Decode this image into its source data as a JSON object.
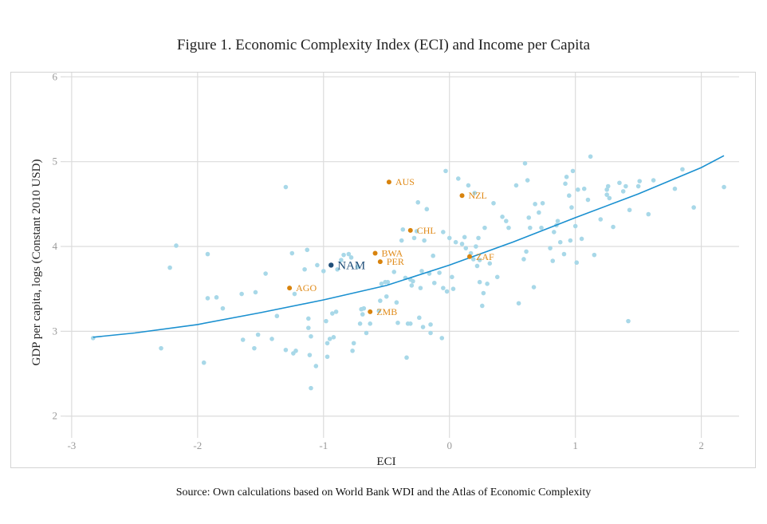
{
  "title": "Figure 1. Economic Complexity Index (ECI) and Income per Capita",
  "source": "Source: Own calculations based on World Bank WDI and the Atlas of Economic Complexity",
  "colors": {
    "background_points": "#a8d8e8",
    "highlight_points": "#d8830d",
    "focus_point": "#1f4e79",
    "trend_line": "#1a90d0",
    "grid": "#dcdcdc"
  },
  "chart_data": {
    "type": "scatter",
    "title": "Figure 1. Economic Complexity Index (ECI) and Income per Capita",
    "xlabel": "ECI",
    "ylabel": "GDP per capita, logs (Constant 2010 USD)",
    "xlim": [
      -3.05,
      2.3
    ],
    "ylim": [
      1.8,
      6.05
    ],
    "xticks": [
      -3,
      -2,
      -1,
      0,
      1,
      2
    ],
    "yticks": [
      2,
      3,
      4,
      5,
      6
    ],
    "grid": true,
    "points": [
      [
        -2.83,
        2.92
      ],
      [
        -2.29,
        2.8
      ],
      [
        -2.22,
        3.75
      ],
      [
        -2.17,
        4.01
      ],
      [
        -1.95,
        2.63
      ],
      [
        -1.92,
        3.91
      ],
      [
        -1.92,
        3.39
      ],
      [
        -1.85,
        3.4
      ],
      [
        -1.8,
        3.27
      ],
      [
        -1.65,
        3.44
      ],
      [
        -1.64,
        2.9
      ],
      [
        -1.55,
        2.8
      ],
      [
        -1.54,
        3.46
      ],
      [
        -1.52,
        2.96
      ],
      [
        -1.46,
        3.68
      ],
      [
        -1.41,
        2.91
      ],
      [
        -1.37,
        3.18
      ],
      [
        -1.3,
        4.7
      ],
      [
        -1.3,
        2.78
      ],
      [
        -1.25,
        3.92
      ],
      [
        -1.24,
        2.74
      ],
      [
        -1.23,
        3.44
      ],
      [
        -1.22,
        2.77
      ],
      [
        -1.15,
        3.73
      ],
      [
        -1.13,
        3.96
      ],
      [
        -1.12,
        3.15
      ],
      [
        -1.12,
        3.04
      ],
      [
        -1.11,
        2.72
      ],
      [
        -1.1,
        2.94
      ],
      [
        -1.1,
        2.33
      ],
      [
        -1.06,
        2.59
      ],
      [
        -1.05,
        3.78
      ],
      [
        -1.0,
        3.71
      ],
      [
        -0.98,
        3.12
      ],
      [
        -0.97,
        2.7
      ],
      [
        -0.97,
        2.86
      ],
      [
        -0.95,
        2.91
      ],
      [
        -0.93,
        3.21
      ],
      [
        -0.92,
        2.93
      ],
      [
        -0.9,
        3.23
      ],
      [
        -0.89,
        3.73
      ],
      [
        -0.86,
        3.84
      ],
      [
        -0.84,
        3.9
      ],
      [
        -0.8,
        3.91
      ],
      [
        -0.78,
        3.87
      ],
      [
        -0.77,
        2.77
      ],
      [
        -0.76,
        2.86
      ],
      [
        -0.73,
        3.76
      ],
      [
        -0.71,
        3.09
      ],
      [
        -0.7,
        3.26
      ],
      [
        -0.69,
        3.2
      ],
      [
        -0.68,
        3.27
      ],
      [
        -0.66,
        2.98
      ],
      [
        -0.63,
        3.09
      ],
      [
        -0.56,
        3.24
      ],
      [
        -0.55,
        3.36
      ],
      [
        -0.54,
        3.56
      ],
      [
        -0.51,
        3.58
      ],
      [
        -0.5,
        3.41
      ],
      [
        -0.49,
        3.58
      ],
      [
        -0.44,
        3.7
      ],
      [
        -0.42,
        3.34
      ],
      [
        -0.41,
        3.1
      ],
      [
        -0.38,
        4.07
      ],
      [
        -0.37,
        4.2
      ],
      [
        -0.35,
        3.63
      ],
      [
        -0.34,
        2.69
      ],
      [
        -0.33,
        3.09
      ],
      [
        -0.31,
        3.09
      ],
      [
        -0.31,
        3.61
      ],
      [
        -0.3,
        3.54
      ],
      [
        -0.29,
        3.59
      ],
      [
        -0.28,
        4.1
      ],
      [
        -0.26,
        4.18
      ],
      [
        -0.25,
        4.52
      ],
      [
        -0.24,
        3.16
      ],
      [
        -0.23,
        3.51
      ],
      [
        -0.22,
        3.71
      ],
      [
        -0.21,
        3.05
      ],
      [
        -0.2,
        4.07
      ],
      [
        -0.18,
        4.44
      ],
      [
        -0.16,
        3.68
      ],
      [
        -0.15,
        3.08
      ],
      [
        -0.15,
        2.98
      ],
      [
        -0.13,
        3.89
      ],
      [
        -0.12,
        3.57
      ],
      [
        -0.08,
        3.69
      ],
      [
        -0.06,
        2.92
      ],
      [
        -0.05,
        3.51
      ],
      [
        -0.05,
        4.17
      ],
      [
        -0.03,
        4.89
      ],
      [
        -0.02,
        3.47
      ],
      [
        0.0,
        4.1
      ],
      [
        0.02,
        3.64
      ],
      [
        0.03,
        3.5
      ],
      [
        0.05,
        4.05
      ],
      [
        0.07,
        4.8
      ],
      [
        0.1,
        4.03
      ],
      [
        0.12,
        4.11
      ],
      [
        0.13,
        3.98
      ],
      [
        0.15,
        4.72
      ],
      [
        0.17,
        3.92
      ],
      [
        0.19,
        3.85
      ],
      [
        0.2,
        4.63
      ],
      [
        0.21,
        4.0
      ],
      [
        0.22,
        3.77
      ],
      [
        0.23,
        4.1
      ],
      [
        0.24,
        3.58
      ],
      [
        0.24,
        3.84
      ],
      [
        0.26,
        3.3
      ],
      [
        0.27,
        3.45
      ],
      [
        0.28,
        4.22
      ],
      [
        0.3,
        3.56
      ],
      [
        0.32,
        3.8
      ],
      [
        0.35,
        4.51
      ],
      [
        0.38,
        3.64
      ],
      [
        0.42,
        4.35
      ],
      [
        0.45,
        4.3
      ],
      [
        0.47,
        4.22
      ],
      [
        0.53,
        4.72
      ],
      [
        0.55,
        3.33
      ],
      [
        0.59,
        3.85
      ],
      [
        0.6,
        4.98
      ],
      [
        0.61,
        3.94
      ],
      [
        0.62,
        4.78
      ],
      [
        0.63,
        4.34
      ],
      [
        0.64,
        4.22
      ],
      [
        0.67,
        3.52
      ],
      [
        0.68,
        4.5
      ],
      [
        0.71,
        4.4
      ],
      [
        0.73,
        4.22
      ],
      [
        0.74,
        4.51
      ],
      [
        0.8,
        3.98
      ],
      [
        0.82,
        3.83
      ],
      [
        0.83,
        4.17
      ],
      [
        0.85,
        4.25
      ],
      [
        0.86,
        4.3
      ],
      [
        0.88,
        4.05
      ],
      [
        0.91,
        3.91
      ],
      [
        0.92,
        4.74
      ],
      [
        0.93,
        4.82
      ],
      [
        0.95,
        4.6
      ],
      [
        0.96,
        4.07
      ],
      [
        0.97,
        4.46
      ],
      [
        0.98,
        4.89
      ],
      [
        1.0,
        4.24
      ],
      [
        1.01,
        3.81
      ],
      [
        1.02,
        4.67
      ],
      [
        1.05,
        4.09
      ],
      [
        1.07,
        4.68
      ],
      [
        1.1,
        4.55
      ],
      [
        1.12,
        5.06
      ],
      [
        1.15,
        3.9
      ],
      [
        1.2,
        4.32
      ],
      [
        1.25,
        4.67
      ],
      [
        1.25,
        4.61
      ],
      [
        1.26,
        4.71
      ],
      [
        1.27,
        4.57
      ],
      [
        1.3,
        4.23
      ],
      [
        1.35,
        4.75
      ],
      [
        1.38,
        4.65
      ],
      [
        1.4,
        4.71
      ],
      [
        1.42,
        3.12
      ],
      [
        1.43,
        4.43
      ],
      [
        1.5,
        4.71
      ],
      [
        1.51,
        4.77
      ],
      [
        1.58,
        4.38
      ],
      [
        1.62,
        4.78
      ],
      [
        1.79,
        4.68
      ],
      [
        1.85,
        4.91
      ],
      [
        1.94,
        4.46
      ],
      [
        2.18,
        4.7
      ]
    ],
    "highlighted": [
      {
        "label": "AUS",
        "x": -0.48,
        "y": 4.76
      },
      {
        "label": "NZL",
        "x": 0.1,
        "y": 4.6
      },
      {
        "label": "CHL",
        "x": -0.31,
        "y": 4.19
      },
      {
        "label": "BWA",
        "x": -0.59,
        "y": 3.92
      },
      {
        "label": "PER",
        "x": -0.55,
        "y": 3.82
      },
      {
        "label": "ZAF",
        "x": 0.16,
        "y": 3.88
      },
      {
        "label": "AGO",
        "x": -1.27,
        "y": 3.51
      },
      {
        "label": "ZMB",
        "x": -0.63,
        "y": 3.23
      }
    ],
    "focus": {
      "label": "NAM",
      "x": -0.94,
      "y": 3.78
    },
    "trend": {
      "type": "smooth",
      "x": [
        -2.83,
        -2.5,
        -2.0,
        -1.5,
        -1.0,
        -0.5,
        0.0,
        0.5,
        1.0,
        1.5,
        2.0,
        2.18
      ],
      "y": [
        2.93,
        2.98,
        3.08,
        3.22,
        3.37,
        3.54,
        3.78,
        4.05,
        4.34,
        4.62,
        4.93,
        5.07
      ]
    }
  }
}
